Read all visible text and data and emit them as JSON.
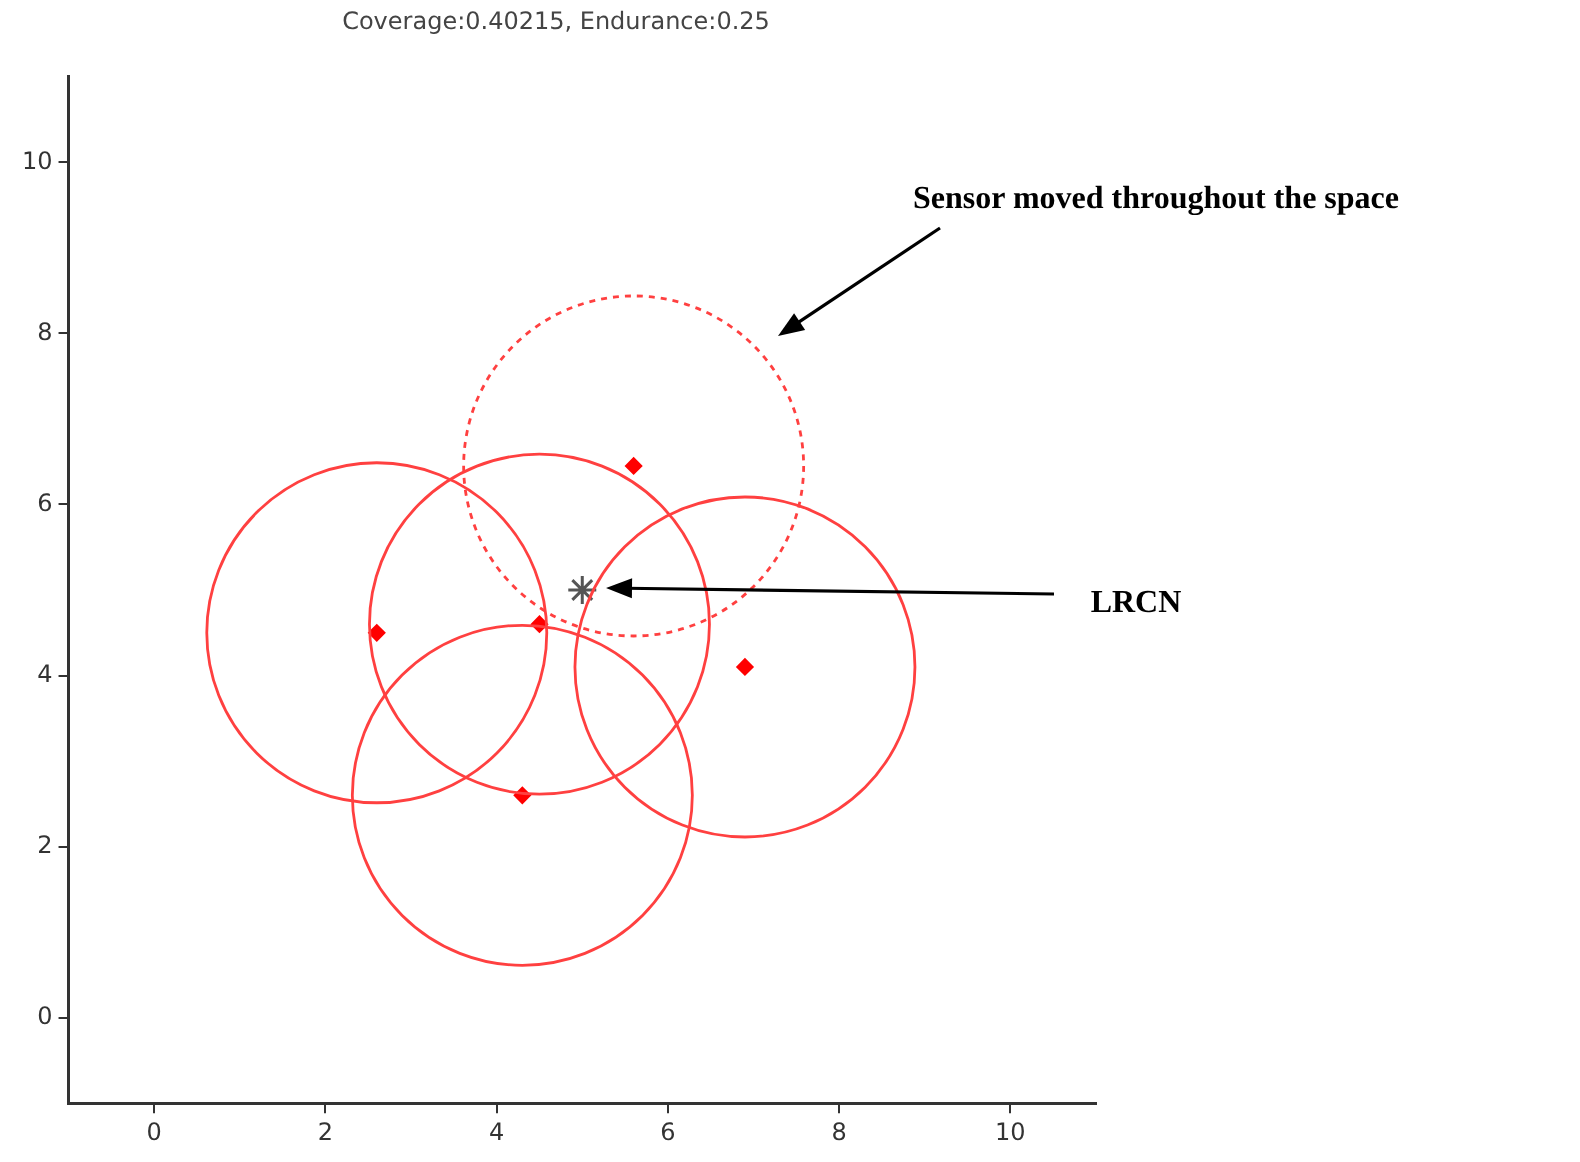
{
  "chart_data": {
    "type": "scatter",
    "title": "Coverage:0.40215, Endurance:0.25",
    "xlim": [
      -1,
      11
    ],
    "xticks": [
      0,
      2,
      4,
      6,
      8,
      10
    ],
    "ylim": [
      -1,
      11
    ],
    "yticks": [
      0,
      2,
      4,
      6,
      8,
      10
    ],
    "legend": false,
    "annotations": [
      "Sensor moved throughout the space",
      "LRCN"
    ],
    "series": [
      {
        "marker": "diamond",
        "color": "#ff0000",
        "x": [
          2.6,
          4.5,
          4.3,
          5.6,
          6.9
        ],
        "values": [
          4.5,
          4.6,
          2.6,
          6.45,
          4.1
        ]
      },
      {
        "marker": "cross",
        "color": "#555555",
        "x": [
          5
        ],
        "values": [
          5
        ]
      }
    ]
  }
}
